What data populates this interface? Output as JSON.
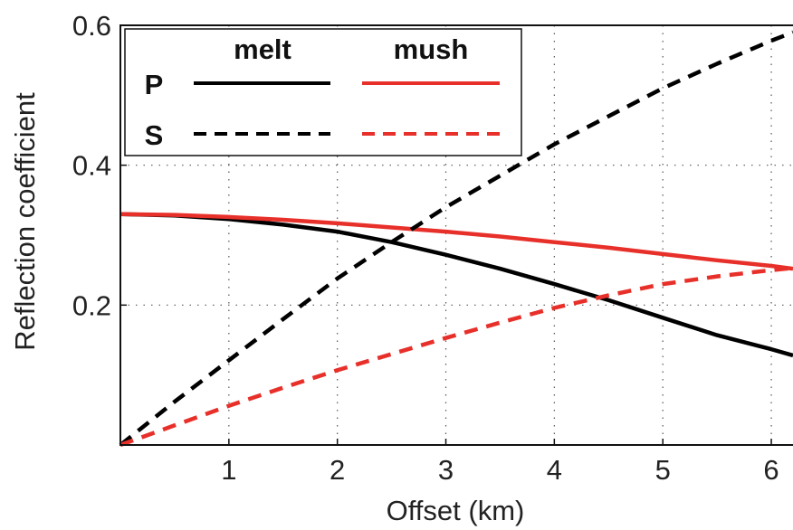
{
  "chart_data": {
    "type": "line",
    "xlabel": "Offset (km)",
    "ylabel": "Reflection coefficient",
    "xlim": [
      0,
      6.2
    ],
    "ylim": [
      0,
      0.6
    ],
    "x_ticks": [
      1,
      2,
      3,
      4,
      5,
      6
    ],
    "x_tick_labels": [
      "1",
      "2",
      "3",
      "4",
      "5",
      "6"
    ],
    "y_ticks": [
      0.2,
      0.4,
      0.6
    ],
    "y_tick_labels": [
      "0.2",
      "0.4",
      "0.6"
    ],
    "grid": true,
    "legend": {
      "placement": "top-left",
      "column_headers": [
        "melt",
        "mush"
      ],
      "row_headers": [
        "P",
        "S"
      ]
    },
    "series": [
      {
        "name": "P melt",
        "wave": "P",
        "medium": "melt",
        "color": "#000000",
        "dashed": false,
        "x": [
          0,
          0.5,
          1,
          1.5,
          2,
          2.5,
          3,
          3.5,
          4,
          4.5,
          5,
          5.5,
          6,
          6.2
        ],
        "y": [
          0.33,
          0.328,
          0.323,
          0.315,
          0.305,
          0.29,
          0.272,
          0.252,
          0.23,
          0.207,
          0.182,
          0.157,
          0.137,
          0.128
        ]
      },
      {
        "name": "P mush",
        "wave": "P",
        "medium": "mush",
        "color": "#e8302a",
        "dashed": false,
        "x": [
          0,
          0.5,
          1,
          1.5,
          2,
          2.5,
          3,
          3.5,
          4,
          4.5,
          5,
          5.5,
          6,
          6.2
        ],
        "y": [
          0.33,
          0.329,
          0.326,
          0.322,
          0.317,
          0.311,
          0.305,
          0.298,
          0.29,
          0.282,
          0.273,
          0.264,
          0.256,
          0.252
        ]
      },
      {
        "name": "S melt",
        "wave": "S",
        "medium": "melt",
        "color": "#000000",
        "dashed": true,
        "x": [
          0,
          0.5,
          1,
          1.5,
          2,
          2.5,
          3,
          3.5,
          4,
          4.5,
          5,
          5.5,
          6,
          6.2
        ],
        "y": [
          0,
          0.062,
          0.121,
          0.18,
          0.238,
          0.29,
          0.34,
          0.385,
          0.43,
          0.47,
          0.51,
          0.545,
          0.578,
          0.59
        ]
      },
      {
        "name": "S mush",
        "wave": "S",
        "medium": "mush",
        "color": "#e8302a",
        "dashed": true,
        "x": [
          0,
          0.5,
          1,
          1.5,
          2,
          2.5,
          3,
          3.5,
          4,
          4.5,
          5,
          5.5,
          6,
          6.2
        ],
        "y": [
          0,
          0.028,
          0.056,
          0.082,
          0.107,
          0.13,
          0.153,
          0.175,
          0.196,
          0.214,
          0.23,
          0.241,
          0.25,
          0.253
        ]
      }
    ]
  }
}
